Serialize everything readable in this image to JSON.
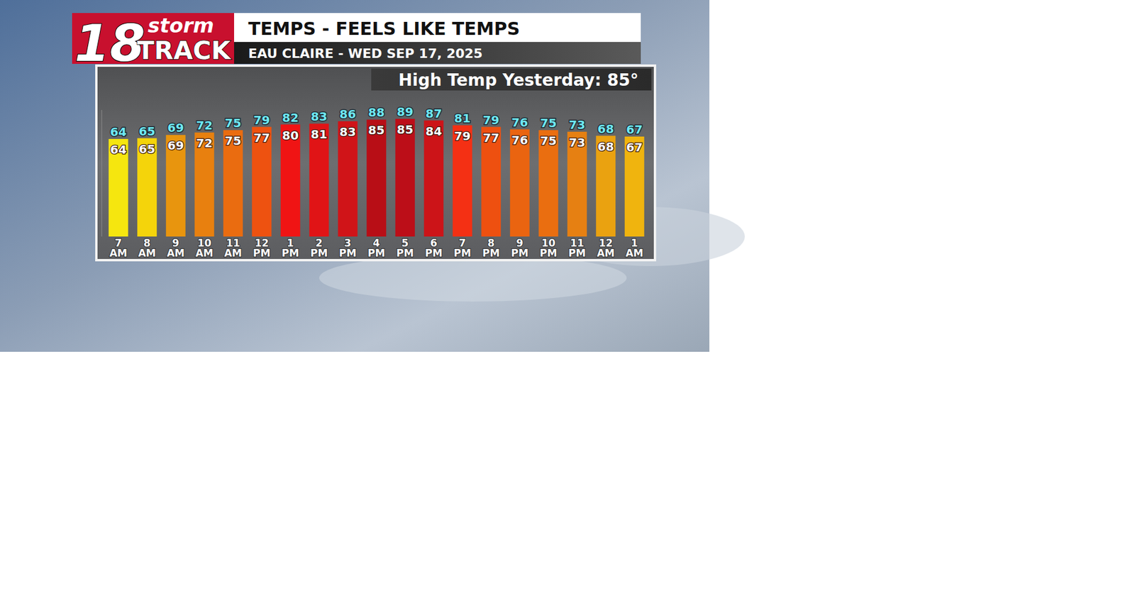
{
  "logo": {
    "number": "18",
    "top": "storm",
    "bottom": "TRACK"
  },
  "chart_data": {
    "type": "bar",
    "title": "TEMPS - FEELS LIKE TEMPS",
    "subtitle": "EAU CLAIRE - WED SEP 17, 2025",
    "annotation": "High Temp Yesterday: 85°",
    "categories": [
      "7 AM",
      "8 AM",
      "9 AM",
      "10 AM",
      "11 AM",
      "12 PM",
      "1 PM",
      "2 PM",
      "3 PM",
      "4 PM",
      "5 PM",
      "6 PM",
      "7 PM",
      "8 PM",
      "9 PM",
      "10 PM",
      "11 PM",
      "12 AM",
      "1 AM"
    ],
    "series": [
      {
        "type": "bar",
        "color": "#6ee8f2",
        "values": [
          64,
          65,
          69,
          72,
          75,
          79,
          82,
          83,
          86,
          88,
          89,
          87,
          81,
          79,
          76,
          75,
          73,
          68,
          67
        ],
        "colors": [
          "#f5e60f",
          "#f4d40b",
          "#e8950e",
          "#e8800f",
          "#ea6c10",
          "#ee5210",
          "#f01414",
          "#e01416",
          "#d01418",
          "#b80e16",
          "#bc0e18",
          "#cc1418",
          "#f43014",
          "#ee5010",
          "#ea6410",
          "#ea6e10",
          "#e68012",
          "#eaa210",
          "#f0b40e"
        ]
      },
      {
        "type": "text",
        "color": "#ffffff",
        "values": [
          64,
          65,
          69,
          72,
          75,
          77,
          80,
          81,
          83,
          85,
          85,
          84,
          79,
          77,
          76,
          75,
          73,
          68,
          67
        ]
      }
    ],
    "ylim": [
      -57,
      100
    ],
    "yticks": [],
    "tick_labels": "x",
    "grid": false,
    "data_labels": true
  }
}
